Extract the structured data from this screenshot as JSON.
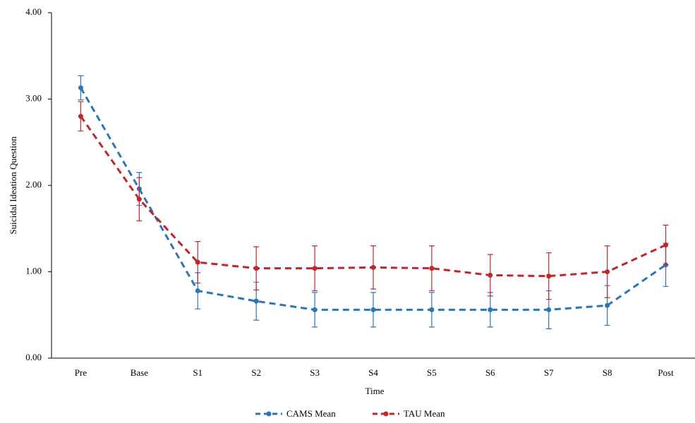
{
  "chart_data": {
    "type": "line",
    "xlabel": "Time",
    "ylabel": "Suicidal Ideation Question",
    "categories": [
      "Pre",
      "Base",
      "S1",
      "S2",
      "S3",
      "S4",
      "S5",
      "S6",
      "S7",
      "S8",
      "Post"
    ],
    "series": [
      {
        "name": "CAMS Mean",
        "color": "#2e75b6",
        "values": [
          3.13,
          1.96,
          0.78,
          0.66,
          0.56,
          0.56,
          0.56,
          0.56,
          0.56,
          0.61,
          1.08
        ],
        "errors": [
          0.14,
          0.19,
          0.21,
          0.22,
          0.2,
          0.2,
          0.2,
          0.2,
          0.22,
          0.23,
          0.25
        ]
      },
      {
        "name": "TAU Mean",
        "color": "#c0272d",
        "values": [
          2.8,
          1.84,
          1.11,
          1.04,
          1.04,
          1.05,
          1.04,
          0.96,
          0.95,
          1.0,
          1.31
        ],
        "errors": [
          0.17,
          0.25,
          0.24,
          0.25,
          0.26,
          0.25,
          0.26,
          0.24,
          0.27,
          0.3,
          0.23
        ]
      }
    ],
    "ylim": [
      0,
      4
    ],
    "yticks": [
      {
        "value": 0,
        "label": "0.00"
      },
      {
        "value": 1,
        "label": "1.00"
      },
      {
        "value": 2,
        "label": "2.00"
      },
      {
        "value": 3,
        "label": "3.00"
      },
      {
        "value": 4,
        "label": "4.00"
      }
    ],
    "legend": "bottom"
  }
}
